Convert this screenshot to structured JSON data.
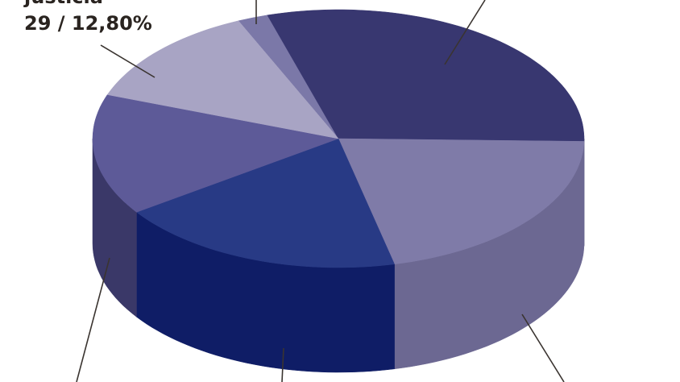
{
  "chart_data": {
    "type": "pie",
    "categories": [
      null,
      null,
      null,
      null,
      null,
      "justicia"
    ],
    "values": [
      2,
      30,
      21,
      19,
      15.2,
      12.8
    ],
    "value_labels": [
      null,
      null,
      null,
      null,
      null,
      "29 / 12,80%"
    ],
    "colors": [
      "#7b78a8",
      "#383770",
      "#7f7ba8",
      "#283a85",
      "#5d5a98",
      "#a8a4c4"
    ],
    "side_colors": [
      "#5a5780",
      "#3c3a68",
      "#6c6892",
      "#0f1d66",
      "#3a3868",
      "#7a7698"
    ]
  }
}
